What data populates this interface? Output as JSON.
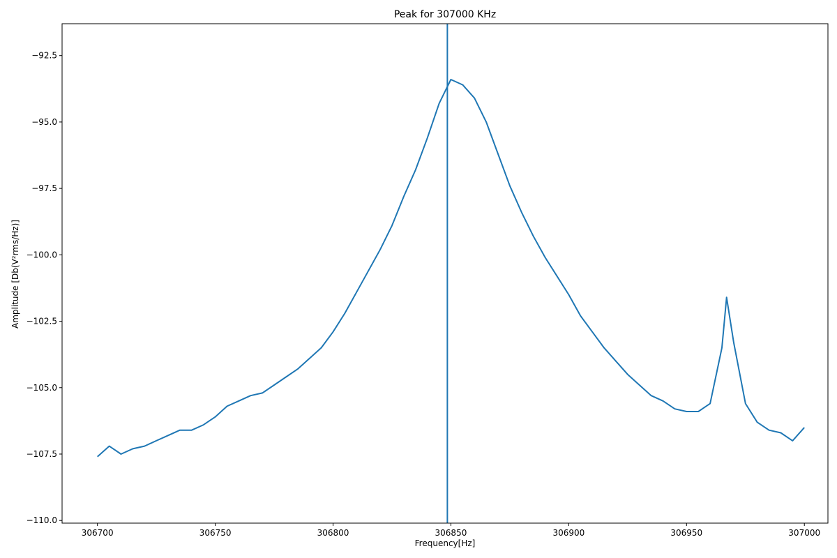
{
  "chart_data": {
    "type": "line",
    "title": "Peak for 307000 KHz",
    "xlabel": "Frequency[Hz]",
    "ylabel": "Amplitude [Db(V²rms/Hz)]",
    "xlim": [
      306685,
      307010
    ],
    "ylim": [
      -110.1,
      -91.3
    ],
    "xticks": [
      306700,
      306750,
      306800,
      306850,
      306900,
      306950,
      307000
    ],
    "yticks": [
      -110.0,
      -107.5,
      -105.0,
      -102.5,
      -100.0,
      -97.5,
      -95.0,
      -92.5
    ],
    "xtick_labels": [
      "306700",
      "306750",
      "306800",
      "306850",
      "306900",
      "306950",
      "307000"
    ],
    "ytick_labels": [
      "−110.0",
      "−107.5",
      "−105.0",
      "−102.5",
      "−100.0",
      "−97.5",
      "−95.0",
      "−92.5"
    ],
    "grid": false,
    "series": [
      {
        "color": "#1f77b4",
        "x": [
          306700,
          306705,
          306710,
          306715,
          306720,
          306725,
          306730,
          306735,
          306740,
          306745,
          306750,
          306755,
          306760,
          306765,
          306770,
          306775,
          306780,
          306785,
          306790,
          306795,
          306800,
          306805,
          306810,
          306815,
          306820,
          306825,
          306830,
          306835,
          306840,
          306845,
          306850,
          306855,
          306860,
          306865,
          306870,
          306875,
          306880,
          306885,
          306890,
          306895,
          306900,
          306905,
          306910,
          306915,
          306920,
          306925,
          306930,
          306935,
          306940,
          306945,
          306950,
          306955,
          306960,
          306965,
          306967,
          306970,
          306975,
          306980,
          306985,
          306990,
          306995,
          307000
        ],
        "values": [
          -107.6,
          -107.2,
          -107.5,
          -107.3,
          -107.2,
          -107.0,
          -106.8,
          -106.6,
          -106.6,
          -106.4,
          -106.1,
          -105.7,
          -105.5,
          -105.3,
          -105.2,
          -104.9,
          -104.6,
          -104.3,
          -103.9,
          -103.5,
          -102.9,
          -102.2,
          -101.4,
          -100.6,
          -99.8,
          -98.9,
          -97.8,
          -96.8,
          -95.6,
          -94.3,
          -93.4,
          -93.6,
          -94.1,
          -95.0,
          -96.2,
          -97.4,
          -98.4,
          -99.3,
          -100.1,
          -100.8,
          -101.5,
          -102.3,
          -102.9,
          -103.5,
          -104.0,
          -104.5,
          -104.9,
          -105.3,
          -105.5,
          -105.8,
          -105.9,
          -105.9,
          -105.6,
          -103.5,
          -101.6,
          -103.3,
          -105.6,
          -106.3,
          -106.6,
          -106.7,
          -107.0,
          -106.5
        ]
      }
    ],
    "vline": {
      "x": 306848.5,
      "color": "#1f77b4"
    }
  }
}
